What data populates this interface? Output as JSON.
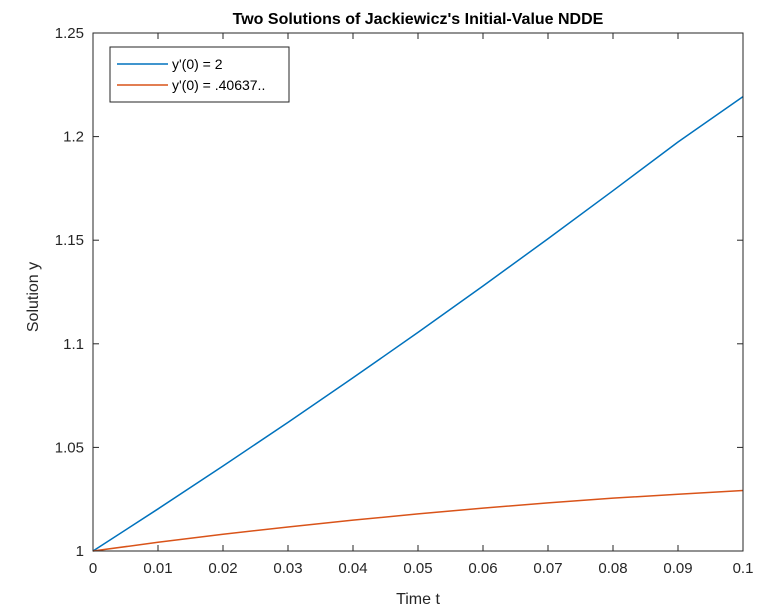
{
  "chart_data": {
    "type": "line",
    "title": "Two Solutions of Jackiewicz's Initial-Value NDDE",
    "xlabel": "Time t",
    "ylabel": "Solution y",
    "xlim": [
      0,
      0.1
    ],
    "ylim": [
      1,
      1.25
    ],
    "grid": false,
    "legend_position": "top-left",
    "x_ticks": [
      0,
      0.01,
      0.02,
      0.03,
      0.04,
      0.05,
      0.06,
      0.07,
      0.08,
      0.09,
      0.1
    ],
    "x_tick_labels": [
      "0",
      "0.01",
      "0.02",
      "0.03",
      "0.04",
      "0.05",
      "0.06",
      "0.07",
      "0.08",
      "0.09",
      "0.1"
    ],
    "y_ticks": [
      1,
      1.05,
      1.1,
      1.15,
      1.2,
      1.25
    ],
    "y_tick_labels": [
      "1",
      "1.05",
      "1.1",
      "1.15",
      "1.2",
      "1.25"
    ],
    "x": [
      0,
      0.01,
      0.02,
      0.03,
      0.04,
      0.05,
      0.06,
      0.07,
      0.08,
      0.09,
      0.1
    ],
    "series": [
      {
        "name": "y'(0) = 2",
        "color": "#0072BD",
        "values": [
          1.0,
          1.0203,
          1.041,
          1.0621,
          1.0836,
          1.1055,
          1.1279,
          1.1507,
          1.1739,
          1.1974,
          1.2193
        ]
      },
      {
        "name": "y'(0) = .40637..",
        "color": "#D95319",
        "values": [
          1.0,
          1.0042,
          1.0081,
          1.0116,
          1.0149,
          1.0179,
          1.0207,
          1.0232,
          1.0255,
          1.0274,
          1.0292
        ]
      }
    ]
  },
  "colors": {
    "axes": "#262626",
    "background": "#ffffff"
  }
}
